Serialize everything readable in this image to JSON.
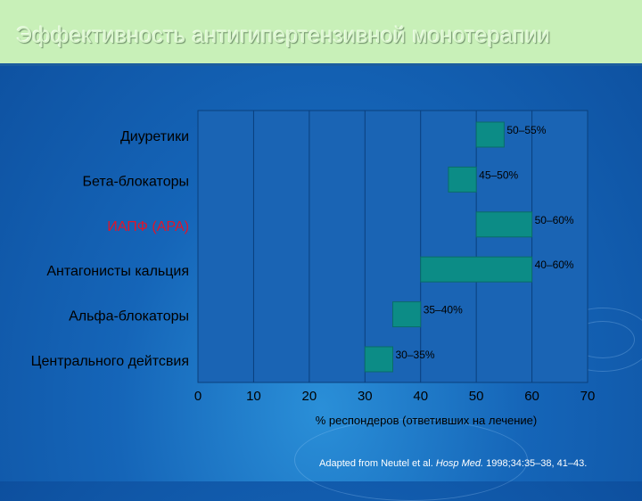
{
  "title": "Эффективность антигипертензивной монотерапии",
  "chart_data": {
    "type": "bar",
    "orientation": "horizontal",
    "categories": [
      "Диуретики",
      "Бета-блокаторы",
      "ИАПФ (АРА)",
      "Антагонисты кальция",
      "Альфа-блокаторы",
      "Центрального дейтсвия"
    ],
    "ranges": [
      [
        50,
        55
      ],
      [
        45,
        50
      ],
      [
        50,
        60
      ],
      [
        40,
        60
      ],
      [
        35,
        40
      ],
      [
        30,
        35
      ]
    ],
    "data_labels": [
      "50–55%",
      "45–50%",
      "50–60%",
      "40–60%",
      "35–40%",
      "30–35%"
    ],
    "xlabel": "% респондеров (ответивших на лечение)",
    "xlim": [
      0,
      70
    ],
    "xticks": [
      0,
      10,
      20,
      30,
      40,
      50,
      60,
      70
    ],
    "grid": true,
    "colors": {
      "bar": "#0c8c86",
      "highlight_label": "#e0152a",
      "plot_background": "#1a64b4",
      "grid": "#0a3f7c",
      "text": "#000000"
    }
  },
  "source": {
    "prefix": "Adapted from Neutel et al.",
    "journal": "Hosp Med.",
    "details": "1998;34:35–38, 41–43."
  }
}
